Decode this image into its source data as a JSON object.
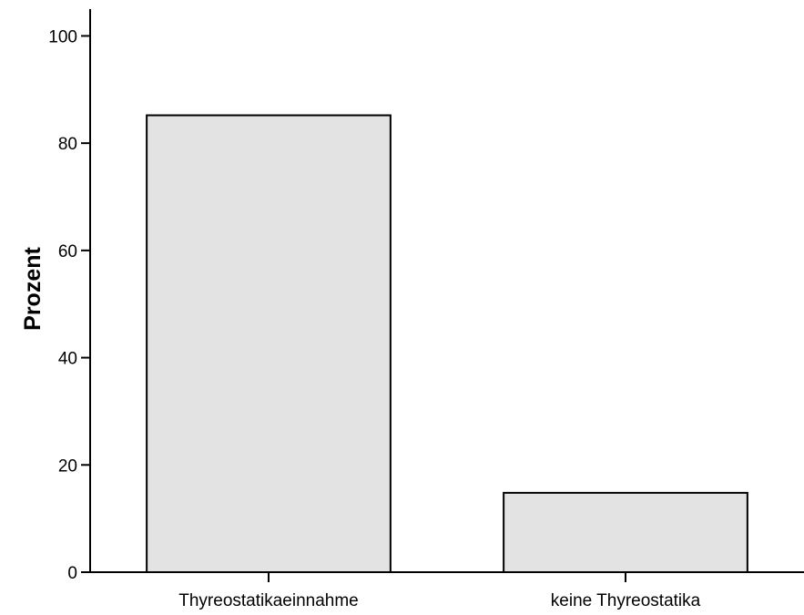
{
  "chart_data": {
    "type": "bar",
    "categories": [
      "Thyreostatikaeinnahme",
      "keine Thyreostatika"
    ],
    "values": [
      85.2,
      14.8
    ],
    "title": "",
    "xlabel": "",
    "ylabel": "Prozent",
    "ylim": [
      0,
      105
    ],
    "yticks": [
      0,
      20,
      40,
      60,
      80,
      100
    ],
    "grid": false,
    "bar_fill": "#e3e3e3",
    "bar_stroke": "#000000"
  }
}
